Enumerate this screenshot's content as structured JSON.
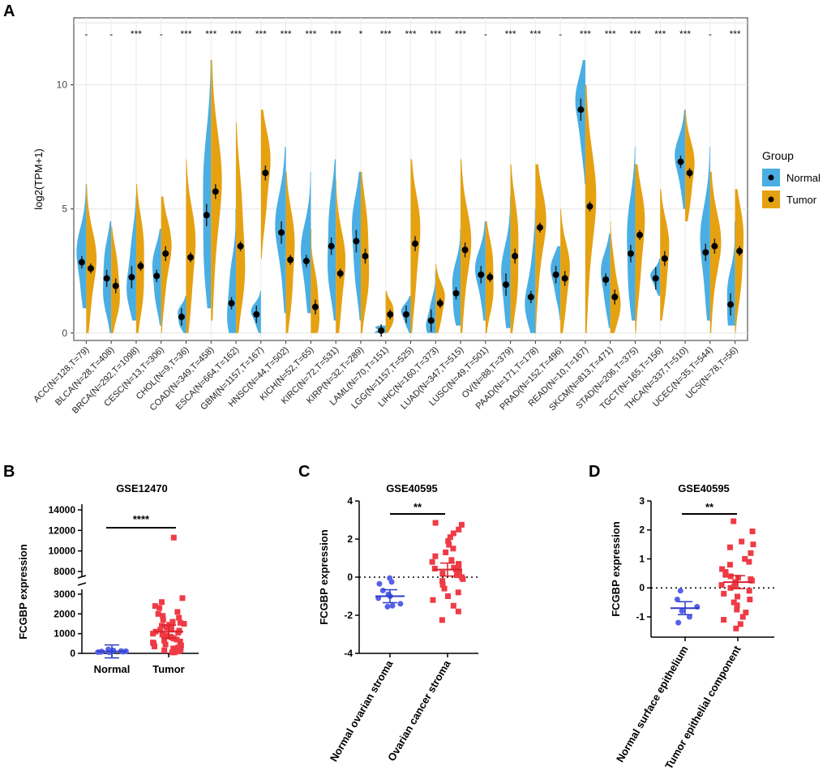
{
  "colors": {
    "normal": "#4aaee3",
    "tumor": "#e6a111",
    "normal_dot": "#5561e8",
    "tumor_dot": "#ef3b45",
    "panel_bg": "#ebebeb"
  },
  "panel_labels": {
    "A": "A",
    "B": "B",
    "C": "C",
    "D": "D"
  },
  "chart_data": [
    {
      "id": "A",
      "type": "violin",
      "title": "",
      "xlabel": "",
      "ylabel": "log2(TPM+1)",
      "ylim": [
        -0.3,
        12.7
      ],
      "yticks": [
        0,
        5,
        10
      ],
      "legend": {
        "title": "Group",
        "position": "right",
        "entries": [
          "Normal",
          "Tumor"
        ]
      },
      "categories": [
        "ACC(N=128,T=79)",
        "BLCA(N=28,T=408)",
        "BRCA(N=292,T=1098)",
        "CESC(N=13,T=306)",
        "CHOL(N=9,T=36)",
        "COAD(N=349,T=458)",
        "ESCA(N=664,T=162)",
        "GBM(N=1157,T=167)",
        "HNSC(N=44,T=502)",
        "KICH(N=52,T=65)",
        "KIRC(N=72,T=531)",
        "KIRP(N=32,T=289)",
        "LAML(N=70,T=151)",
        "LGG(N=1157,T=525)",
        "LIHC(N=160,T=373)",
        "LUAD(N=347,T=515)",
        "LUSC(N=49,T=501)",
        "OV(N=88,T=379)",
        "PAAD(N=171,T=178)",
        "PRAD(N=152,T=496)",
        "READ(N=10,T=167)",
        "SKCM(N=813,T=471)",
        "STAD(N=206,T=375)",
        "TGCT(N=165,T=156)",
        "THCA(N=337,T=510)",
        "UCEC(N=35,T=544)",
        "UCS(N=78,T=56)"
      ],
      "significance": [
        "-",
        "-",
        "***",
        "-",
        "***",
        "***",
        "***",
        "***",
        "***",
        "***",
        "***",
        "*",
        "***",
        "***",
        "***",
        "***",
        "-",
        "***",
        "***",
        "-",
        "***",
        "***",
        "***",
        "***",
        "***",
        "-",
        "***"
      ],
      "normal_median": [
        2.85,
        2.2,
        2.25,
        2.3,
        0.65,
        4.75,
        1.2,
        0.75,
        4.05,
        2.9,
        3.5,
        3.7,
        0.1,
        0.75,
        0.5,
        1.6,
        2.35,
        1.95,
        1.45,
        2.35,
        9.0,
        2.15,
        3.2,
        2.2,
        6.9,
        3.25,
        1.15
      ],
      "tumor_median": [
        2.6,
        1.9,
        2.7,
        3.2,
        3.05,
        5.7,
        3.5,
        6.45,
        2.95,
        1.05,
        2.4,
        3.1,
        0.75,
        3.6,
        1.2,
        3.35,
        2.25,
        3.1,
        4.25,
        2.2,
        5.1,
        1.45,
        3.95,
        3.0,
        6.45,
        3.5,
        3.3
      ],
      "normal_range": [
        [
          1.0,
          6.0
        ],
        [
          0.0,
          4.5
        ],
        [
          0.5,
          5.5
        ],
        [
          0.3,
          4.2
        ],
        [
          0.0,
          1.5
        ],
        [
          1.0,
          11.0
        ],
        [
          0.0,
          5.0
        ],
        [
          0.0,
          1.7
        ],
        [
          0.8,
          7.5
        ],
        [
          0.8,
          6.5
        ],
        [
          0.5,
          7.0
        ],
        [
          0.5,
          6.5
        ],
        [
          0.0,
          0.3
        ],
        [
          0.0,
          1.5
        ],
        [
          0.0,
          2.5
        ],
        [
          0.3,
          4.2
        ],
        [
          0.5,
          4.5
        ],
        [
          0.2,
          5.5
        ],
        [
          0.0,
          5.0
        ],
        [
          0.5,
          3.5
        ],
        [
          6.0,
          11.0
        ],
        [
          0.2,
          4.0
        ],
        [
          0.5,
          7.5
        ],
        [
          1.5,
          3.0
        ],
        [
          5.0,
          9.0
        ],
        [
          0.5,
          7.5
        ],
        [
          0.3,
          4.5
        ]
      ],
      "tumor_range": [
        [
          0.0,
          6.0
        ],
        [
          0.0,
          4.3
        ],
        [
          0.0,
          6.0
        ],
        [
          0.0,
          5.5
        ],
        [
          0.0,
          7.0
        ],
        [
          0.5,
          11.0
        ],
        [
          0.0,
          8.5
        ],
        [
          3.0,
          9.0
        ],
        [
          0.0,
          6.5
        ],
        [
          0.0,
          4.2
        ],
        [
          0.0,
          6.2
        ],
        [
          0.0,
          6.5
        ],
        [
          0.0,
          1.7
        ],
        [
          0.0,
          7.0
        ],
        [
          0.0,
          2.8
        ],
        [
          0.0,
          7.0
        ],
        [
          0.0,
          4.5
        ],
        [
          0.0,
          6.8
        ],
        [
          0.0,
          6.8
        ],
        [
          0.0,
          5.0
        ],
        [
          0.0,
          10.0
        ],
        [
          0.0,
          4.5
        ],
        [
          0.0,
          6.8
        ],
        [
          0.5,
          5.8
        ],
        [
          4.5,
          9.0
        ],
        [
          0.0,
          6.5
        ],
        [
          0.0,
          5.8
        ]
      ]
    },
    {
      "id": "B",
      "type": "scatter",
      "title": "GSE12470",
      "xlabel": "",
      "ylabel": "FCGBP expression",
      "categories": [
        "Normal",
        "Tumor"
      ],
      "yticks_lower": [
        0,
        1000,
        2000,
        3000
      ],
      "yticks_upper": [
        8000,
        10000,
        12000,
        14000
      ],
      "significance": "****",
      "means": [
        100,
        1100
      ],
      "normal_values": [
        50,
        80,
        100,
        120,
        150,
        200,
        60,
        90,
        110,
        130,
        70
      ],
      "tumor_values": [
        11300,
        2800,
        2600,
        2400,
        2300,
        2100,
        2000,
        1900,
        1800,
        1700,
        1600,
        1550,
        1500,
        1450,
        1400,
        1350,
        1300,
        1250,
        1200,
        1150,
        1100,
        1050,
        1000,
        950,
        900,
        850,
        800,
        750,
        700,
        650,
        600,
        550,
        500,
        450,
        400,
        350,
        300,
        250,
        200,
        150,
        100,
        100,
        50,
        50
      ]
    },
    {
      "id": "C",
      "type": "scatter",
      "title": "GSE40595",
      "xlabel": "",
      "ylabel": "FCGBP expression",
      "categories": [
        "Normal ovarian stroma",
        "Ovarian cancer stroma"
      ],
      "ylim": [
        -4,
        4
      ],
      "yticks": [
        -4,
        -2,
        0,
        2,
        4
      ],
      "significance": "**",
      "means": [
        -1.0,
        0.4
      ],
      "normal_values": [
        -0.05,
        -0.25,
        -0.35,
        -0.7,
        -0.9,
        -1.0,
        -1.1,
        -1.4,
        -1.5,
        -1.55
      ],
      "tumor_values": [
        2.85,
        2.75,
        2.5,
        2.3,
        2.1,
        1.9,
        1.7,
        1.5,
        1.3,
        1.1,
        0.9,
        0.8,
        0.7,
        0.6,
        0.5,
        0.45,
        0.4,
        0.3,
        0.2,
        0.1,
        0.0,
        -0.1,
        -0.2,
        -0.4,
        -0.6,
        -0.8,
        -1.0,
        -1.2,
        -1.5,
        -1.8,
        -2.25
      ]
    },
    {
      "id": "D",
      "type": "scatter",
      "title": "GSE40595",
      "xlabel": "",
      "ylabel": "FCGBP expression",
      "categories": [
        "Normal surface epithelium",
        "Tumor epithelial component"
      ],
      "ylim": [
        -1.7,
        3
      ],
      "yticks": [
        -1,
        0,
        1,
        2,
        3
      ],
      "significance": "**",
      "means": [
        -0.7,
        0.2
      ],
      "normal_values": [
        -0.1,
        -0.4,
        -0.65,
        -0.8,
        -1.0,
        -1.2
      ],
      "tumor_values": [
        2.3,
        1.95,
        1.6,
        1.5,
        1.4,
        1.2,
        1.0,
        0.9,
        0.8,
        0.65,
        0.55,
        0.45,
        0.4,
        0.35,
        0.3,
        0.25,
        0.2,
        0.1,
        0.05,
        0.0,
        -0.1,
        -0.2,
        -0.3,
        -0.4,
        -0.5,
        -0.6,
        -0.75,
        -0.85,
        -1.0,
        -1.1,
        -1.25,
        -1.4
      ]
    }
  ]
}
